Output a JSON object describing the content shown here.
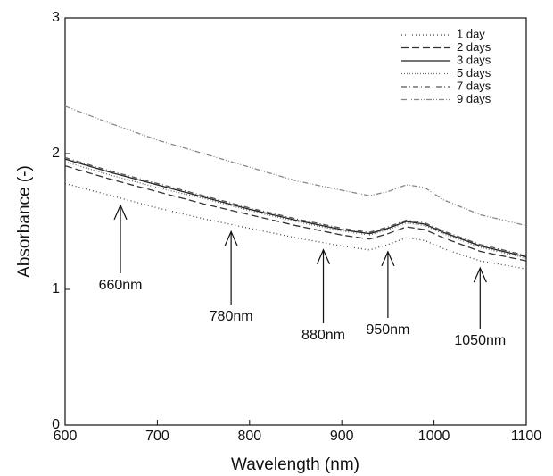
{
  "chart_data": {
    "type": "line",
    "x_label": "Wavelength (nm)",
    "y_label": "Absorbance (-)",
    "x": [
      600,
      650,
      700,
      750,
      800,
      850,
      900,
      930,
      950,
      970,
      990,
      1010,
      1050,
      1100
    ],
    "series": [
      {
        "name": "1 day",
        "color": "#444444",
        "dash": "1,3",
        "values": [
          1.78,
          1.69,
          1.6,
          1.52,
          1.45,
          1.38,
          1.32,
          1.29,
          1.33,
          1.38,
          1.36,
          1.3,
          1.21,
          1.15
        ]
      },
      {
        "name": "2 days",
        "color": "#333333",
        "dash": "8,4",
        "values": [
          1.91,
          1.81,
          1.72,
          1.63,
          1.55,
          1.47,
          1.4,
          1.37,
          1.41,
          1.46,
          1.44,
          1.38,
          1.28,
          1.21
        ]
      },
      {
        "name": "3 days",
        "color": "#222222",
        "dash": "none",
        "values": [
          1.96,
          1.86,
          1.77,
          1.68,
          1.59,
          1.51,
          1.44,
          1.41,
          1.45,
          1.5,
          1.48,
          1.42,
          1.32,
          1.24
        ]
      },
      {
        "name": "5 days",
        "color": "#666666",
        "dash": "1,2",
        "values": [
          1.94,
          1.84,
          1.75,
          1.67,
          1.58,
          1.5,
          1.43,
          1.4,
          1.44,
          1.49,
          1.47,
          1.41,
          1.31,
          1.23
        ]
      },
      {
        "name": "7 days",
        "color": "#555555",
        "dash": "6,3,1,3",
        "values": [
          1.97,
          1.87,
          1.78,
          1.69,
          1.6,
          1.52,
          1.45,
          1.42,
          1.46,
          1.51,
          1.49,
          1.43,
          1.33,
          1.25
        ]
      },
      {
        "name": "9 days",
        "color": "#888888",
        "dash": "6,2,1,2,1,2",
        "values": [
          2.35,
          2.22,
          2.1,
          2.0,
          1.9,
          1.8,
          1.73,
          1.69,
          1.72,
          1.77,
          1.75,
          1.66,
          1.55,
          1.47
        ]
      }
    ],
    "annotations": [
      {
        "text": "660nm",
        "x": 660
      },
      {
        "text": "780nm",
        "x": 780
      },
      {
        "text": "880nm",
        "x": 880
      },
      {
        "text": "950nm",
        "x": 950
      },
      {
        "text": "1050nm",
        "x": 1050
      }
    ],
    "xlim": [
      600,
      1100
    ],
    "xticks": [
      600,
      700,
      800,
      900,
      1000,
      1100
    ],
    "ylim": [
      0,
      3
    ],
    "yticks": [
      0,
      1,
      2,
      3
    ],
    "legend": "upper right"
  }
}
